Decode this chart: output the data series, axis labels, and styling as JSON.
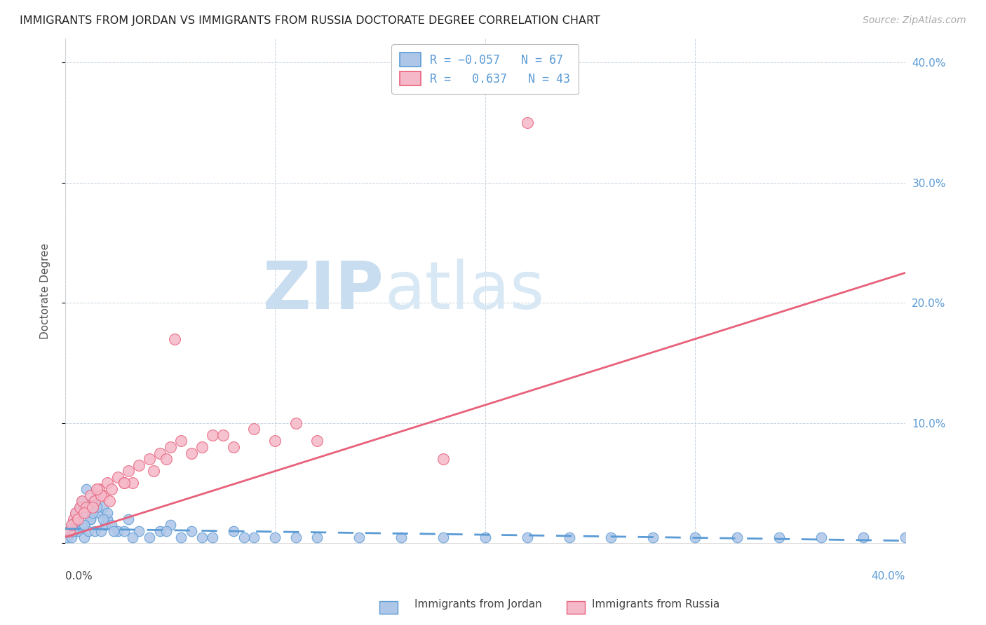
{
  "title": "IMMIGRANTS FROM JORDAN VS IMMIGRANTS FROM RUSSIA DOCTORATE DEGREE CORRELATION CHART",
  "source": "Source: ZipAtlas.com",
  "ylabel": "Doctorate Degree",
  "jordan_R": -0.057,
  "jordan_N": 67,
  "russia_R": 0.637,
  "russia_N": 43,
  "jordan_color": "#aec6e8",
  "russia_color": "#f5b8c8",
  "jordan_edge_color": "#5b9bd5",
  "russia_edge_color": "#e8607a",
  "jordan_line_color": "#5b9bd5",
  "russia_line_color": "#e8607a",
  "background_color": "#ffffff",
  "grid_color": "#c8d4e0",
  "watermark_zip_color": "#c8ddf0",
  "watermark_atlas_color": "#d8e8f4",
  "xlim": [
    0,
    40
  ],
  "ylim": [
    0,
    42
  ],
  "ytick_vals": [
    0,
    10,
    20,
    30,
    40
  ],
  "xtick_vals": [
    0,
    10,
    20,
    30,
    40
  ],
  "russia_line_x0": 0.0,
  "russia_line_y0": 0.5,
  "russia_line_x1": 40.0,
  "russia_line_y1": 22.5,
  "jordan_line_x0": 0.0,
  "jordan_line_y0": 1.2,
  "jordan_line_x1": 40.0,
  "jordan_line_y1": 0.2,
  "jordan_x": [
    0.1,
    0.2,
    0.3,
    0.4,
    0.5,
    0.6,
    0.7,
    0.8,
    0.9,
    1.0,
    1.1,
    1.2,
    1.3,
    1.4,
    1.5,
    1.6,
    1.7,
    1.8,
    1.9,
    2.0,
    2.2,
    2.5,
    2.8,
    3.0,
    3.5,
    4.0,
    4.5,
    5.0,
    5.5,
    6.0,
    7.0,
    8.0,
    9.0,
    10.0,
    11.0,
    12.0,
    14.0,
    16.0,
    18.0,
    20.0,
    22.0,
    24.0,
    26.0,
    28.0,
    30.0,
    32.0,
    34.0,
    36.0,
    38.0,
    40.0,
    0.3,
    0.5,
    0.8,
    1.0,
    1.2,
    1.5,
    2.0,
    0.4,
    0.6,
    0.9,
    1.3,
    1.8,
    2.3,
    3.2,
    4.8,
    6.5,
    8.5
  ],
  "jordan_y": [
    0.5,
    1.0,
    0.5,
    1.5,
    2.0,
    1.0,
    3.0,
    1.5,
    0.5,
    2.5,
    1.0,
    2.0,
    3.5,
    1.0,
    4.0,
    2.5,
    1.0,
    3.0,
    1.5,
    2.0,
    1.5,
    1.0,
    1.0,
    2.0,
    1.0,
    0.5,
    1.0,
    1.5,
    0.5,
    1.0,
    0.5,
    1.0,
    0.5,
    0.5,
    0.5,
    0.5,
    0.5,
    0.5,
    0.5,
    0.5,
    0.5,
    0.5,
    0.5,
    0.5,
    0.5,
    0.5,
    0.5,
    0.5,
    0.5,
    0.5,
    1.5,
    2.5,
    3.5,
    4.5,
    2.0,
    3.0,
    2.5,
    1.0,
    2.0,
    1.5,
    2.5,
    2.0,
    1.0,
    0.5,
    1.0,
    0.5,
    0.5
  ],
  "russia_x": [
    0.2,
    0.4,
    0.5,
    0.7,
    0.8,
    1.0,
    1.2,
    1.4,
    1.6,
    1.8,
    2.0,
    2.2,
    2.5,
    2.8,
    3.0,
    3.5,
    4.0,
    4.5,
    5.0,
    5.5,
    6.0,
    7.0,
    8.0,
    9.0,
    10.0,
    11.0,
    0.3,
    0.6,
    0.9,
    1.3,
    1.7,
    2.1,
    3.2,
    4.2,
    6.5,
    5.2,
    1.5,
    2.8,
    4.8,
    7.5,
    22.0,
    12.0,
    18.0
  ],
  "russia_y": [
    1.0,
    2.0,
    2.5,
    3.0,
    3.5,
    3.0,
    4.0,
    3.5,
    4.5,
    4.0,
    5.0,
    4.5,
    5.5,
    5.0,
    6.0,
    6.5,
    7.0,
    7.5,
    8.0,
    8.5,
    7.5,
    9.0,
    8.0,
    9.5,
    8.5,
    10.0,
    1.5,
    2.0,
    2.5,
    3.0,
    4.0,
    3.5,
    5.0,
    6.0,
    8.0,
    17.0,
    4.5,
    5.0,
    7.0,
    9.0,
    35.0,
    8.5,
    7.0
  ]
}
